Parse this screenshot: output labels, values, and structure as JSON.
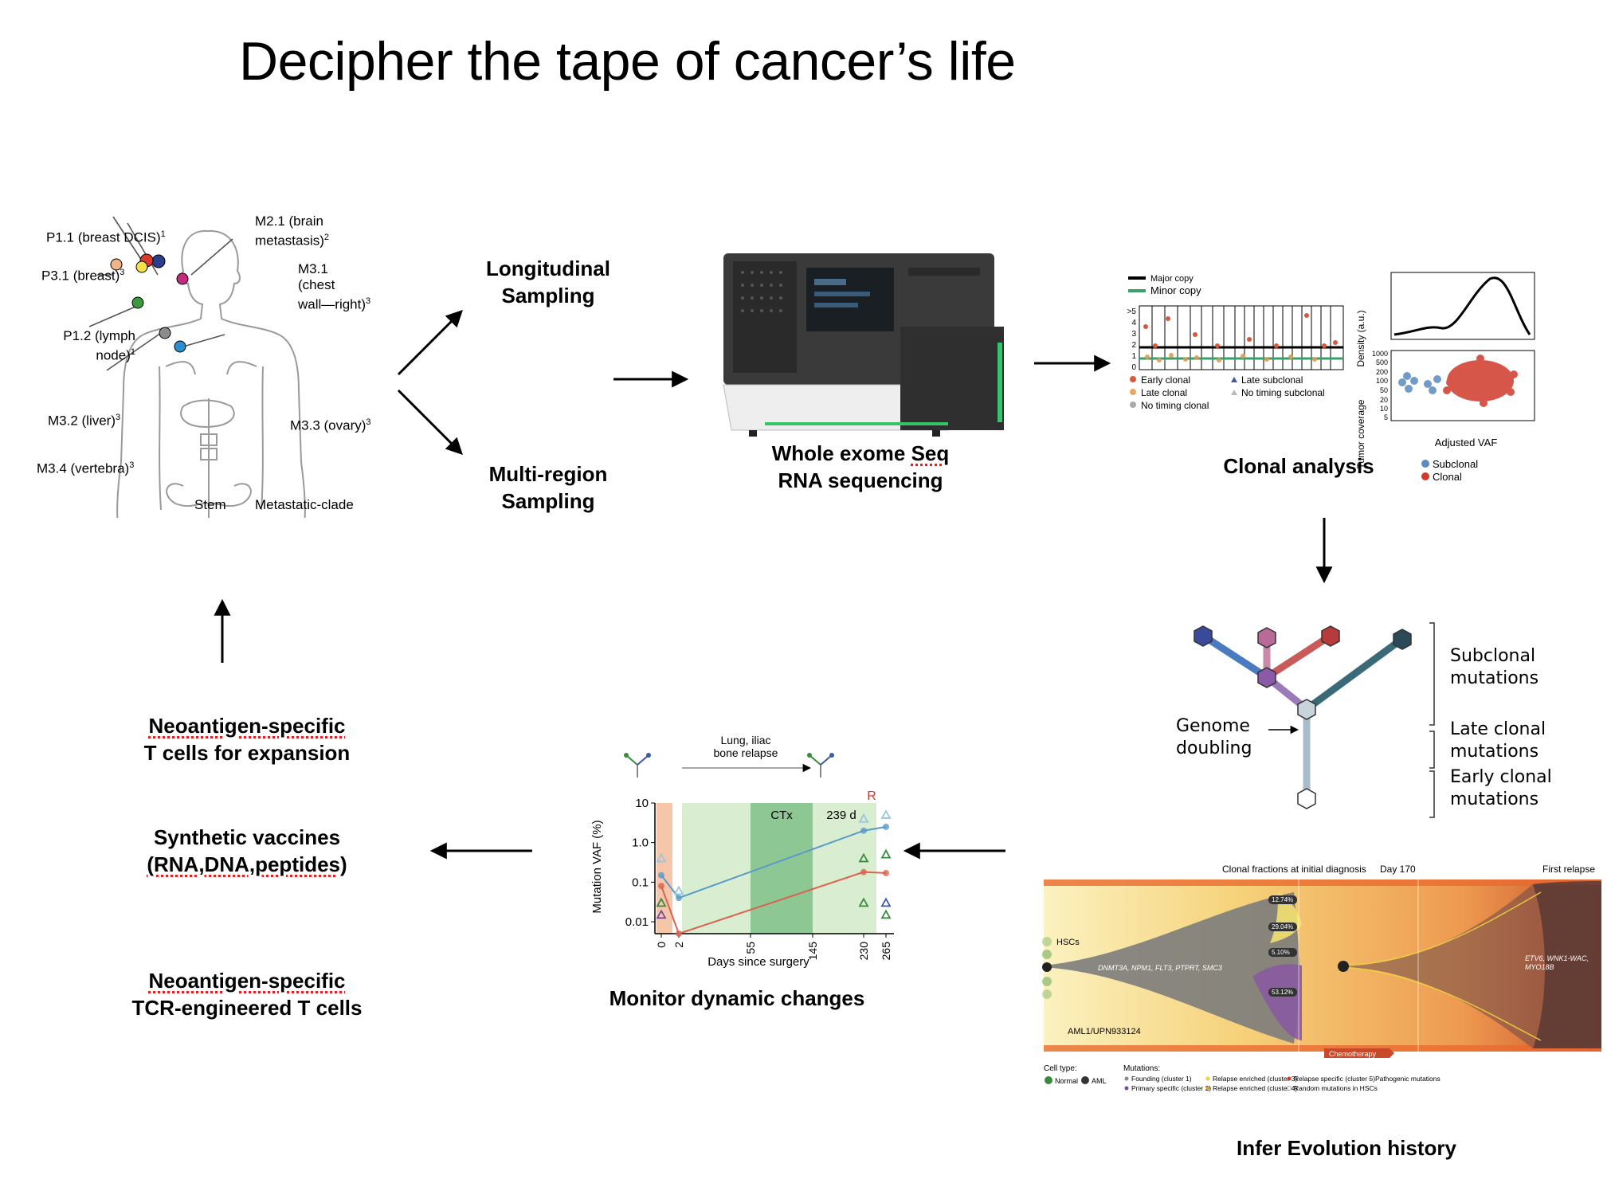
{
  "title": "Decipher the tape of cancer’s life",
  "body_map": {
    "labels": {
      "m21a": "M2.1 (brain",
      "m21b": "metastasis)",
      "m21sup": "2",
      "p11": "P1.1 (breast DCIS)",
      "p11sup": "1",
      "p31": "P3.1 (breast)",
      "p31sup": "3",
      "m31a": "M3.1",
      "m31b": "(chest",
      "m31c": "wall—right)",
      "m31sup": "3",
      "p12a": "P1.2 (lymph",
      "p12b": "node)",
      "p12sup": "1",
      "m32": "M3.2 (liver)",
      "m32sup": "3",
      "m33": "M3.3 (ovary)",
      "m33sup": "3",
      "m34": "M3.4 (vertebra)",
      "m34sup": "3",
      "stem": "Stem",
      "clade": "Metastatic-clade"
    },
    "site_colors": {
      "brain": "#2b3f8c",
      "breast_dcis": "#d93a2b",
      "lymph": "#f2b48a",
      "breast": "#f5e04a",
      "chest": "#c42a7e",
      "liver": "#3a9a3e",
      "vertebra": "#8c8c8c",
      "ovary": "#2a8fd0"
    }
  },
  "sampling": {
    "longitudinal": [
      "Longitudinal",
      "Sampling"
    ],
    "multiregion": [
      "Multi-region",
      "Sampling"
    ]
  },
  "sequencing": {
    "line1_a": "Whole exome ",
    "line1_b": "Seq",
    "line2": "RNA sequencing"
  },
  "clonal": {
    "caption": "Clonal analysis",
    "legend_major": "Major copy",
    "legend_minor": "Minor copy",
    "yticks": [
      ">5",
      "4",
      "3",
      "2",
      "1",
      "0"
    ],
    "early_clonal": "Early clonal",
    "late_clonal": "Late clonal",
    "no_timing_clonal": "No timing clonal",
    "late_subclonal": "Late subclonal",
    "no_timing_subclonal": "No timing subclonal",
    "density_label": "Density (a.u.)",
    "coverage_label": "Tumor coverage",
    "cov_ticks": [
      "1000",
      "500",
      "200",
      "100",
      "50",
      "20",
      "10",
      "5"
    ],
    "xlabel": "Adjusted VAF",
    "subclonal": "Subclonal",
    "clonal": "Clonal"
  },
  "evolution_tree": {
    "subclonal": [
      "Subclonal",
      "mutations"
    ],
    "late_clonal": [
      "Late clonal",
      "mutations"
    ],
    "early_clonal": [
      "Early clonal",
      "mutations"
    ],
    "genome": [
      "Genome",
      "doubling"
    ]
  },
  "fishplot": {
    "caption": "Infer Evolution history",
    "header_initial": "Clonal fractions at initial diagnosis",
    "header_day": "Day 170",
    "header_relapse": "First relapse",
    "hscs": "HSCs",
    "founding_genes": "DNMT3A, NPM1, FLT3, PTPRT, SMC3",
    "relapse_genes": [
      "ETV6, WNK1-WAC,",
      "MYO18B"
    ],
    "fractions": [
      "12.74%",
      "29.04%",
      "5.10%",
      "53.12%"
    ],
    "patient": "AML1/UPN933124",
    "chemo": "Chemotherapy",
    "cell_type_label": "Cell type:",
    "normal": "Normal",
    "aml": "AML",
    "mutations_label": "Mutations:",
    "legend": [
      "Founding (cluster 1)",
      "Primary specific (cluster 2)",
      "Relapse enriched (cluster 3)",
      "Relapse enriched (cluster 4)",
      "Relapse specific (cluster 5)",
      "Random mutations in HSCs",
      "Pathogenic mutations"
    ],
    "legend_colors": [
      "#8a8a8a",
      "#7a4a9a",
      "#f0d040",
      "#e09a30",
      "#d03a2a",
      "#ffffff",
      "#ffffff"
    ]
  },
  "monitor": {
    "caption": "Monitor dynamic changes",
    "relapse_label": [
      "Lung, iliac",
      "bone relapse"
    ],
    "ylabel": "Mutation VAF (%)",
    "xlabel": "Days since surgery",
    "yticks": [
      "10",
      "1.0",
      "0.1",
      "0.01"
    ],
    "xticks": [
      "0",
      "2",
      "55",
      "145",
      "230",
      "265"
    ],
    "ctx": "CTx",
    "days239": "239 d",
    "r": "R"
  },
  "chart_data": {
    "type": "line",
    "title": "",
    "xlabel": "Days since surgery",
    "ylabel": "Mutation VAF (%)",
    "yscale": "log",
    "ylim": [
      0.005,
      10
    ],
    "xticks": [
      0,
      2,
      55,
      145,
      230,
      265
    ],
    "series": [
      {
        "color": "#5a9ac8",
        "x": [
          0,
          2,
          230,
          265
        ],
        "values": [
          0.15,
          0.04,
          2.0,
          2.5
        ]
      },
      {
        "color": "#d9634f",
        "x": [
          0,
          2,
          230,
          265
        ],
        "values": [
          0.08,
          0.005,
          0.18,
          0.17
        ]
      }
    ]
  },
  "therapy": {
    "neo_expansion": [
      "Neoantigen-specific",
      "T cells for expansion"
    ],
    "vaccines": [
      "Synthetic vaccines",
      "(RNA,DNA,peptides)"
    ],
    "tcr": [
      "Neoantigen-specific",
      "TCR-engineered T cells"
    ]
  }
}
